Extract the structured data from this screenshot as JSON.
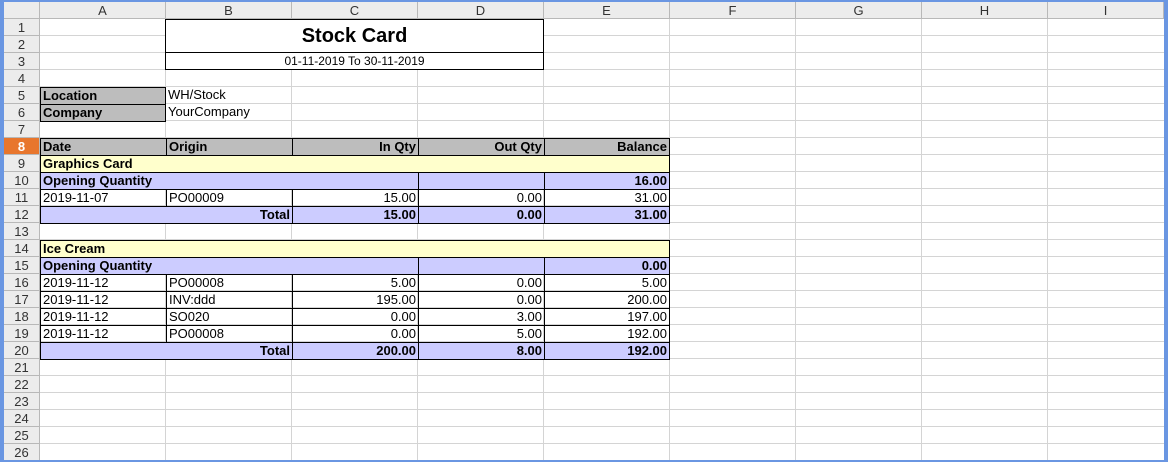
{
  "columns": [
    "A",
    "B",
    "C",
    "D",
    "E",
    "F",
    "G",
    "H",
    "I"
  ],
  "rows": [
    "1",
    "2",
    "3",
    "4",
    "5",
    "6",
    "7",
    "8",
    "9",
    "10",
    "11",
    "12",
    "13",
    "14",
    "15",
    "16",
    "17",
    "18",
    "19",
    "20",
    "21",
    "22",
    "23",
    "24",
    "25",
    "26"
  ],
  "report": {
    "title": "Stock Card",
    "date_range": "01-11-2019 To 30-11-2019",
    "location_label": "Location",
    "location_value": "WH/Stock",
    "company_label": "Company",
    "company_value": "YourCompany"
  },
  "table_header": {
    "date": "Date",
    "origin": "Origin",
    "in_qty": "In Qty",
    "out_qty": "Out Qty",
    "balance": "Balance"
  },
  "products": [
    {
      "name": "Graphics Card",
      "opening_label": "Opening Quantity",
      "opening_balance": "16.00",
      "moves": [
        {
          "date": "2019-11-07",
          "origin": "PO00009",
          "in": "15.00",
          "out": "0.00",
          "balance": "31.00"
        }
      ],
      "total_label": "Total",
      "total_in": "15.00",
      "total_out": "0.00",
      "total_balance": "31.00"
    },
    {
      "name": "Ice Cream",
      "opening_label": "Opening Quantity",
      "opening_balance": "0.00",
      "moves": [
        {
          "date": "2019-11-12",
          "origin": "PO00008",
          "in": "5.00",
          "out": "0.00",
          "balance": "5.00"
        },
        {
          "date": "2019-11-12",
          "origin": "INV:ddd",
          "in": "195.00",
          "out": "0.00",
          "balance": "200.00"
        },
        {
          "date": "2019-11-12",
          "origin": "SO020",
          "in": "0.00",
          "out": "3.00",
          "balance": "197.00"
        },
        {
          "date": "2019-11-12",
          "origin": "PO00008",
          "in": "0.00",
          "out": "5.00",
          "balance": "192.00"
        }
      ],
      "total_label": "Total",
      "total_in": "200.00",
      "total_out": "8.00",
      "total_balance": "192.00"
    }
  ],
  "selected_row": "8",
  "colors": {
    "frame": "#6a96e2",
    "header_gray": "#bdbdbd",
    "product_yellow": "#ffffcc",
    "total_lavender": "#ccccff",
    "selected_row": "#e8762d"
  }
}
